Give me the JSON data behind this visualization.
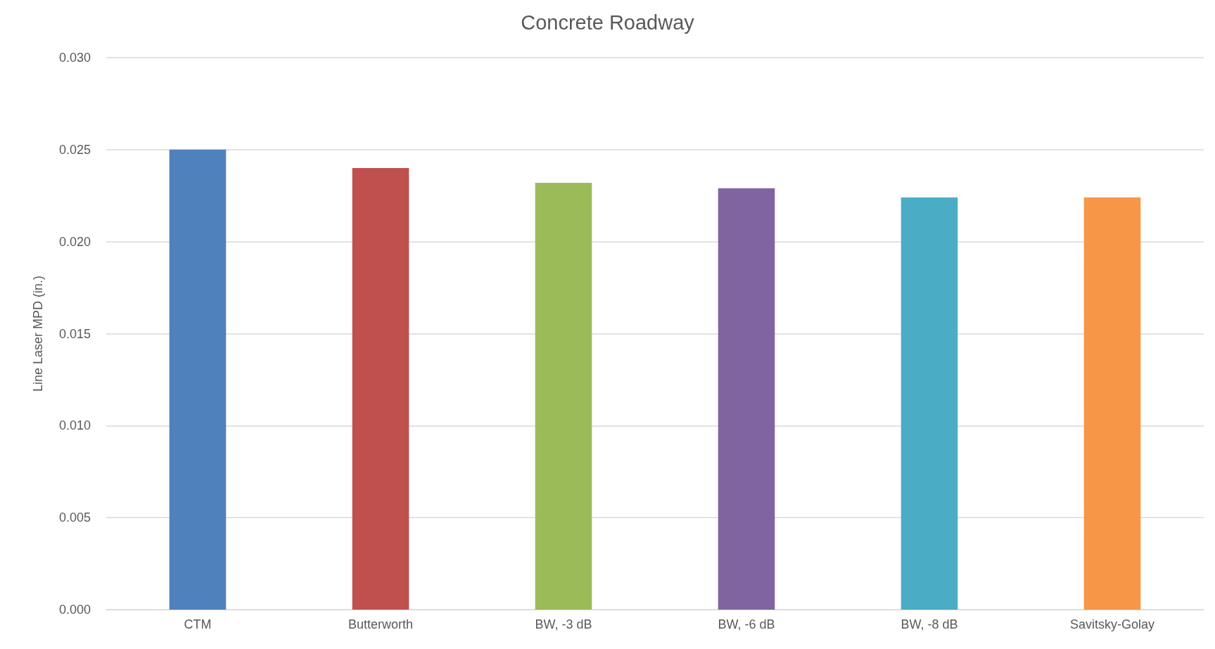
{
  "chart_data": {
    "type": "bar",
    "title": "Concrete Roadway",
    "ylabel": "Line Laser MPD (in.)",
    "categories": [
      "CTM",
      "Butterworth",
      "BW, -3 dB",
      "BW, -6 dB",
      "BW, -8 dB",
      "Savitsky-Golay"
    ],
    "values": [
      0.025,
      0.024,
      0.0232,
      0.0229,
      0.0224,
      0.0224
    ],
    "colors": [
      "#4f81bd",
      "#c0504d",
      "#9bbb59",
      "#8064a2",
      "#4bacc6",
      "#f79646"
    ],
    "ylim": [
      0,
      0.03
    ],
    "yticks": [
      {
        "value": 0,
        "label": "0.000"
      },
      {
        "value": 0.005,
        "label": "0.005"
      },
      {
        "value": 0.01,
        "label": "0.010"
      },
      {
        "value": 0.015,
        "label": "0.015"
      },
      {
        "value": 0.02,
        "label": "0.020"
      },
      {
        "value": 0.025,
        "label": "0.025"
      },
      {
        "value": 0.03,
        "label": "0.030"
      }
    ],
    "grid": "y"
  }
}
